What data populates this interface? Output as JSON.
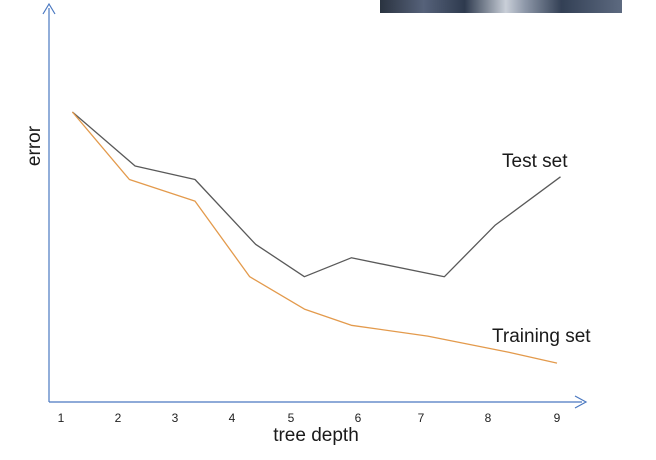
{
  "chart_data": {
    "type": "line",
    "title": "",
    "xlabel": "tree depth",
    "ylabel": "error",
    "x_ticks": [
      "1",
      "2",
      "3",
      "4",
      "5",
      "6",
      "7",
      "8",
      "9"
    ],
    "xlim": [
      0.8,
      9.5
    ],
    "ylim": [
      0,
      100
    ],
    "grid": false,
    "series": [
      {
        "name": "Test set",
        "color": "#595959",
        "x": [
          1.2,
          2.3,
          3.35,
          4.4,
          5.2,
          5.9,
          7.35,
          8.1,
          9.05
        ],
        "y": [
          100,
          80,
          75,
          51,
          39,
          46,
          39,
          58,
          76
        ]
      },
      {
        "name": "Training set",
        "color": "#e39a4c",
        "x": [
          1.2,
          2.2,
          3.35,
          4.3,
          5.2,
          5.9,
          7.1,
          8.3,
          9.0
        ],
        "y": [
          100,
          75,
          67,
          39,
          27,
          21,
          17,
          11,
          7
        ]
      }
    ]
  }
}
